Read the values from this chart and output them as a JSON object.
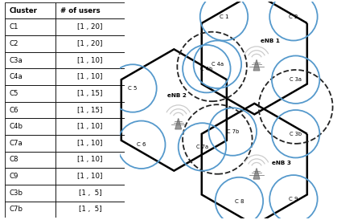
{
  "table_headers": [
    "Cluster",
    "# of users"
  ],
  "table_rows": [
    [
      "C1",
      "[1 , 20]"
    ],
    [
      "C2",
      "[1 , 20]"
    ],
    [
      "C3a",
      "[1 , 10]"
    ],
    [
      "C4a",
      "[1 , 10]"
    ],
    [
      "C5",
      "[1 , 15]"
    ],
    [
      "C6",
      "[1 , 15]"
    ],
    [
      "C4b",
      "[1 , 10]"
    ],
    [
      "C7a",
      "[1 , 10]"
    ],
    [
      "C8",
      "[1 , 10]"
    ],
    [
      "C9",
      "[1 , 10]"
    ],
    [
      "C3b",
      "[1 ,  5]"
    ],
    [
      "C7b",
      "[1 ,  5]"
    ]
  ],
  "cluster_circle_color": "#5599cc",
  "cluster_circle_lw": 1.3,
  "cluster_circle_r": 0.11,
  "dashed_circle_color": "#222222",
  "dashed_circle_lw": 1.3,
  "hex_lw": 1.8,
  "bg_color": "#ffffff",
  "text_color": "#000000",
  "tower_color": "#999999",
  "signal_color": "#cccccc"
}
